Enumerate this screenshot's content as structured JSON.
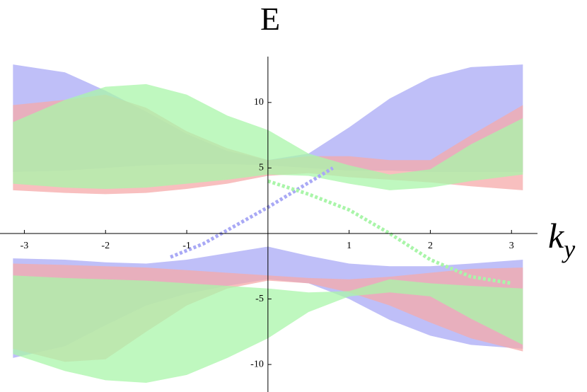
{
  "chart_data": {
    "type": "band",
    "title": "E",
    "x_label": "k",
    "x_label_subscript": "y",
    "xlim": [
      -3.3,
      3.32
    ],
    "ylim": [
      -12.1,
      13.5
    ],
    "xticks": [
      -3,
      -2,
      -1,
      1,
      2,
      3
    ],
    "yticks": [
      -10,
      -5,
      5,
      10
    ],
    "x": [
      -3.14,
      -2.5,
      -2,
      -1.5,
      -1,
      -0.5,
      0,
      0.5,
      1,
      1.5,
      2,
      2.5,
      3.14
    ],
    "bands": [
      {
        "color": "#a9a9f5",
        "upper": [
          12.9,
          12.3,
          10.9,
          9.3,
          7.6,
          6.3,
          5.6,
          6.1,
          8.1,
          10.3,
          11.9,
          12.7,
          12.9
        ],
        "lower": [
          4.7,
          4.8,
          5.0,
          5.2,
          5.3,
          5.3,
          5.2,
          5.0,
          4.8,
          4.8,
          4.7,
          4.7,
          4.7
        ]
      },
      {
        "color": "#f5a9a9",
        "upper": [
          9.8,
          10.2,
          10.6,
          9.6,
          7.8,
          6.5,
          5.6,
          5.9,
          5.9,
          5.6,
          5.6,
          7.5,
          9.8
        ],
        "lower": [
          3.3,
          3.1,
          3.0,
          3.1,
          3.4,
          3.8,
          4.4,
          4.6,
          4.3,
          4.1,
          3.9,
          3.6,
          3.3
        ]
      },
      {
        "color": "#a9f5a9",
        "upper": [
          8.5,
          10.2,
          11.2,
          11.4,
          10.6,
          9.0,
          7.9,
          6.1,
          5.2,
          4.5,
          4.9,
          6.8,
          8.8
        ],
        "lower": [
          3.8,
          3.5,
          3.4,
          3.5,
          3.8,
          4.1,
          4.5,
          4.4,
          3.8,
          3.3,
          3.5,
          4.0,
          4.5
        ]
      },
      {
        "color": "#a9a9f5",
        "upper": [
          -1.9,
          -2.0,
          -2.2,
          -2.3,
          -2.0,
          -1.5,
          -1.0,
          -1.7,
          -2.3,
          -2.5,
          -2.5,
          -2.3,
          -2.0
        ],
        "lower": [
          -9.5,
          -8.6,
          -7.0,
          -5.5,
          -4.6,
          -4.0,
          -3.5,
          -3.8,
          -5.0,
          -6.6,
          -7.8,
          -8.5,
          -8.8
        ]
      },
      {
        "color": "#f5a9a9",
        "upper": [
          -2.3,
          -2.4,
          -2.5,
          -2.6,
          -2.8,
          -3.0,
          -3.2,
          -3.4,
          -3.5,
          -3.3,
          -3.0,
          -2.7,
          -2.6
        ],
        "lower": [
          -8.8,
          -9.8,
          -9.6,
          -7.5,
          -5.5,
          -4.2,
          -3.6,
          -3.8,
          -4.5,
          -5.5,
          -6.8,
          -8.0,
          -9.0
        ]
      },
      {
        "color": "#a9f5a9",
        "upper": [
          -3.2,
          -3.4,
          -3.5,
          -3.6,
          -3.8,
          -4.0,
          -4.2,
          -4.5,
          -4.4,
          -3.5,
          -3.8,
          -4.0,
          -4.2
        ],
        "lower": [
          -9.2,
          -10.5,
          -11.2,
          -11.4,
          -10.8,
          -9.5,
          -8.0,
          -6.0,
          -4.8,
          -4.5,
          -4.8,
          -6.5,
          -8.5
        ]
      }
    ],
    "edge_states": [
      {
        "color": "#a9a9f5",
        "x": [
          -1.2,
          -0.8,
          -0.4,
          0,
          0.4,
          0.8
        ],
        "values": [
          -1.8,
          -0.8,
          0.6,
          2,
          3.5,
          5
        ]
      },
      {
        "color": "#a9f5a9",
        "x": [
          0,
          0.5,
          1,
          1.5,
          2,
          2.5,
          3
        ],
        "values": [
          4,
          3,
          1.8,
          0,
          -2,
          -3.3,
          -3.8
        ]
      }
    ]
  }
}
